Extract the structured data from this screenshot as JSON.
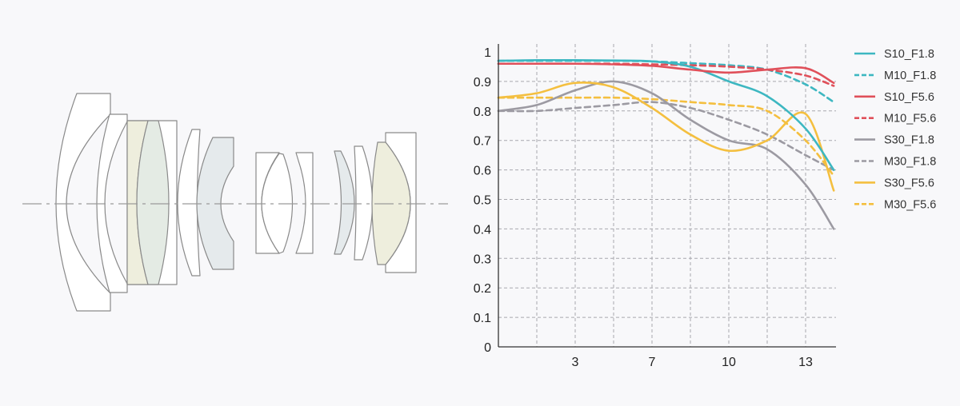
{
  "lens_diagram": {
    "colors": {
      "outline": "#8a8a8a",
      "axis": "#9a9a9a",
      "glass_yellow": "#eeeedd",
      "glass_green": "#e4ebe4",
      "glass_blue": "#e5eaec"
    }
  },
  "chart_data": {
    "type": "line",
    "title": "",
    "xlabel": "",
    "ylabel": "",
    "ylim": [
      0,
      1
    ],
    "x_ticks": [
      "3",
      "7",
      "10",
      "13"
    ],
    "x_tick_values": [
      3,
      7,
      10,
      13
    ],
    "y_ticks": [
      "0",
      "0.1",
      "0.2",
      "0.3",
      "0.4",
      "0.5",
      "0.6",
      "0.7",
      "0.8",
      "0.9",
      "1"
    ],
    "grid": true,
    "legend_position": "right",
    "x": [
      0,
      1.5,
      3,
      5,
      7,
      8.5,
      10,
      11.5,
      13,
      14.1
    ],
    "series": [
      {
        "name": "S10_F1.8",
        "color": "#3db7c1",
        "dash": false,
        "values": [
          0.97,
          0.972,
          0.972,
          0.971,
          0.968,
          0.95,
          0.9,
          0.85,
          0.74,
          0.6
        ]
      },
      {
        "name": "M10_F1.8",
        "color": "#3db7c1",
        "dash": true,
        "values": [
          0.97,
          0.97,
          0.97,
          0.97,
          0.968,
          0.962,
          0.955,
          0.94,
          0.89,
          0.83
        ]
      },
      {
        "name": "S10_F5.6",
        "color": "#e0505a",
        "dash": false,
        "values": [
          0.96,
          0.96,
          0.96,
          0.958,
          0.953,
          0.94,
          0.93,
          0.94,
          0.945,
          0.895
        ]
      },
      {
        "name": "M10_F5.6",
        "color": "#e0505a",
        "dash": true,
        "values": [
          0.96,
          0.96,
          0.96,
          0.96,
          0.958,
          0.955,
          0.95,
          0.94,
          0.92,
          0.885
        ]
      },
      {
        "name": "S30_F1.8",
        "color": "#9c9aa2",
        "dash": false,
        "values": [
          0.8,
          0.82,
          0.87,
          0.9,
          0.86,
          0.77,
          0.7,
          0.67,
          0.55,
          0.4
        ]
      },
      {
        "name": "M30_F1.8",
        "color": "#9c9aa2",
        "dash": true,
        "values": [
          0.8,
          0.8,
          0.81,
          0.82,
          0.83,
          0.81,
          0.77,
          0.72,
          0.65,
          0.6
        ]
      },
      {
        "name": "S30_F5.6",
        "color": "#f4bf3f",
        "dash": false,
        "values": [
          0.845,
          0.86,
          0.895,
          0.88,
          0.81,
          0.72,
          0.665,
          0.7,
          0.79,
          0.53
        ]
      },
      {
        "name": "M30_F5.6",
        "color": "#f4bf3f",
        "dash": true,
        "values": [
          0.845,
          0.845,
          0.845,
          0.845,
          0.84,
          0.83,
          0.82,
          0.8,
          0.7,
          0.58
        ]
      }
    ]
  }
}
